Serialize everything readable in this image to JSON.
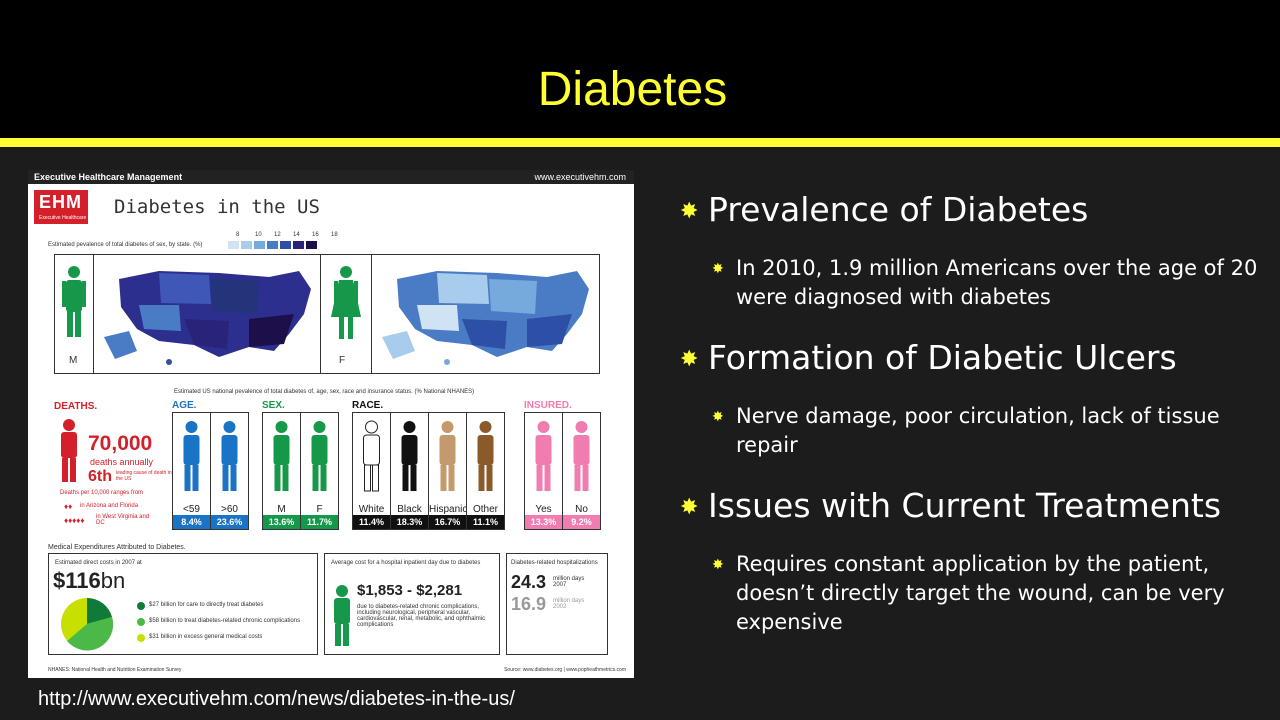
{
  "slide": {
    "title": "Diabetes",
    "source_url": "http://www.executivehm.com/news/diabetes-in-the-us/"
  },
  "bullets": [
    {
      "text": "Prevalence of Diabetes",
      "sub": "In 2010, 1.9 million Americans over the age of 20 were diagnosed with diabetes"
    },
    {
      "text": "Formation of Diabetic Ulcers",
      "sub": "Nerve damage, poor circulation, lack of tissue repair"
    },
    {
      "text": "Issues with Current Treatments",
      "sub": "Requires constant application by the patient, doesn’t directly target the wound, can be very expensive"
    }
  ],
  "infographic": {
    "header_left": "Executive Healthcare Management",
    "header_right": "www.executivehm.com",
    "logo_text": "EHM",
    "logo_sub": "Executive Healthcare",
    "title": "Diabetes in the US",
    "map_caption": "Estimated pevalence of total diabetes of sex, by state. (%)",
    "legend_ticks": [
      "8",
      "10",
      "12",
      "14",
      "16",
      "18"
    ],
    "legend_colors": [
      "#cfe3f5",
      "#a8ccec",
      "#76a9dc",
      "#4a7cc6",
      "#2d4fa6",
      "#29237a",
      "#1c0f4a"
    ],
    "map_male_label": "M",
    "map_female_label": "F",
    "nhanes_caption": "Estimated US national pevalence of total diabetes of, age, sex, race and insurance status. (% National NHANES)",
    "deaths": {
      "heading": "DEATHS.",
      "count": "70,000",
      "count_sub": "deaths annually",
      "rank": "6th",
      "rank_sub": "leading cause of death in the US",
      "ranges": "Deaths per 10,000 ranges from",
      "low": "in Arizona and Florida",
      "high": "in West Virginia and DC"
    },
    "groups": [
      {
        "heading": "AGE.",
        "color": "#1a73c4",
        "items": [
          {
            "label": "<59",
            "pct": "8.4%",
            "fig": "#1a73c4"
          },
          {
            "label": ">60",
            "pct": "23.6%",
            "fig": "#1a73c4"
          }
        ]
      },
      {
        "heading": "SEX.",
        "color": "#15984a",
        "items": [
          {
            "label": "M",
            "pct": "13.6%",
            "fig": "#15984a"
          },
          {
            "label": "F",
            "pct": "11.7%",
            "fig": "#15984a"
          }
        ]
      },
      {
        "heading": "RACE.",
        "color": "#111111",
        "items": [
          {
            "label": "White",
            "pct": "11.4%",
            "fig": "#ffffff"
          },
          {
            "label": "Black",
            "pct": "18.3%",
            "fig": "#111111"
          },
          {
            "label": "Hispanic",
            "pct": "16.7%",
            "fig": "#c49a6c"
          },
          {
            "label": "Other",
            "pct": "11.1%",
            "fig": "#8b5a2b"
          }
        ]
      },
      {
        "heading": "INSURED.",
        "color": "#f07cb0",
        "items": [
          {
            "label": "Yes",
            "pct": "13.3%",
            "fig": "#f07cb0"
          },
          {
            "label": "No",
            "pct": "9.2%",
            "fig": "#f07cb0"
          }
        ]
      }
    ],
    "expenditures": {
      "heading": "Medical Expenditures Attributed to Diabetes.",
      "direct_caption": "Estimated direct costs in 2007 at",
      "direct_amount": "$116",
      "direct_unit": "bn",
      "breakdown": [
        {
          "text": "$27 billion for care to directly treat diabetes",
          "color": "#0f7a3a"
        },
        {
          "text": "$58 billion to treat diabetes-related chronic complications",
          "color": "#4cb848"
        },
        {
          "text": "$31 billion in excess general medical costs",
          "color": "#c8e000"
        }
      ],
      "inpatient_caption": "Average cost for a hospital inpatient day due to diabetes",
      "inpatient_range": "$1,853 - $2,281",
      "inpatient_note": "due to diabetes-related chronic complications, including neurological, peripheral vascular, cardiovascular, renal, metabolic, and ophthalmic complications",
      "hosp_caption": "Diabetes-related hospitalizations",
      "hosp_2007": "24.3",
      "hosp_2007_sub": "million days 2007",
      "hosp_2002": "16.9",
      "hosp_2002_sub": "million days 2002"
    },
    "footer_left": "NHANES: National Health and Nutrition Examination Survey",
    "footer_right": "Source: www.diabetes.org | www.popheathmetrics.com"
  }
}
